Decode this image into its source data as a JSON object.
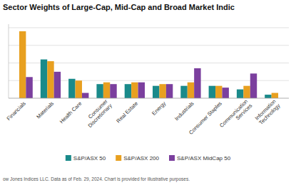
{
  "chart_data": {
    "type": "bar",
    "title": "Sector Weights of Large-Cap, Mid-Cap and Broad Market Indic",
    "categories": [
      "Financials",
      "Materials",
      "Health Care",
      "Consumer\nDiscretionary",
      "Real Estate",
      "Energy",
      "Industrials",
      "Consumer Staples",
      "Communication\nServices",
      "Information\nTechnology"
    ],
    "series": [
      {
        "name": "S&P/ASX 50",
        "color": "#1a8a8a",
        "values": [
          0,
          22,
          11,
          8,
          8,
          7,
          7,
          7,
          5,
          2
        ]
      },
      {
        "name": "S&P/ASX 200",
        "color": "#e8a020",
        "values": [
          38,
          21,
          10,
          9,
          9,
          8,
          9,
          7,
          7,
          3
        ]
      },
      {
        "name": "S&P/ASX MidCap 50",
        "color": "#7b3f9e",
        "values": [
          12,
          15,
          3,
          8,
          9,
          8,
          17,
          6,
          14,
          0
        ]
      }
    ],
    "ylim": [
      0,
      42
    ],
    "yticks": [
      10,
      20,
      30,
      40
    ],
    "grid": true,
    "tick_labels": "x",
    "legend": "bottom",
    "footnote": "ow Jones Indices LLC. Data as of Feb. 29, 2024. Chart is provided for illustrative purposes."
  }
}
